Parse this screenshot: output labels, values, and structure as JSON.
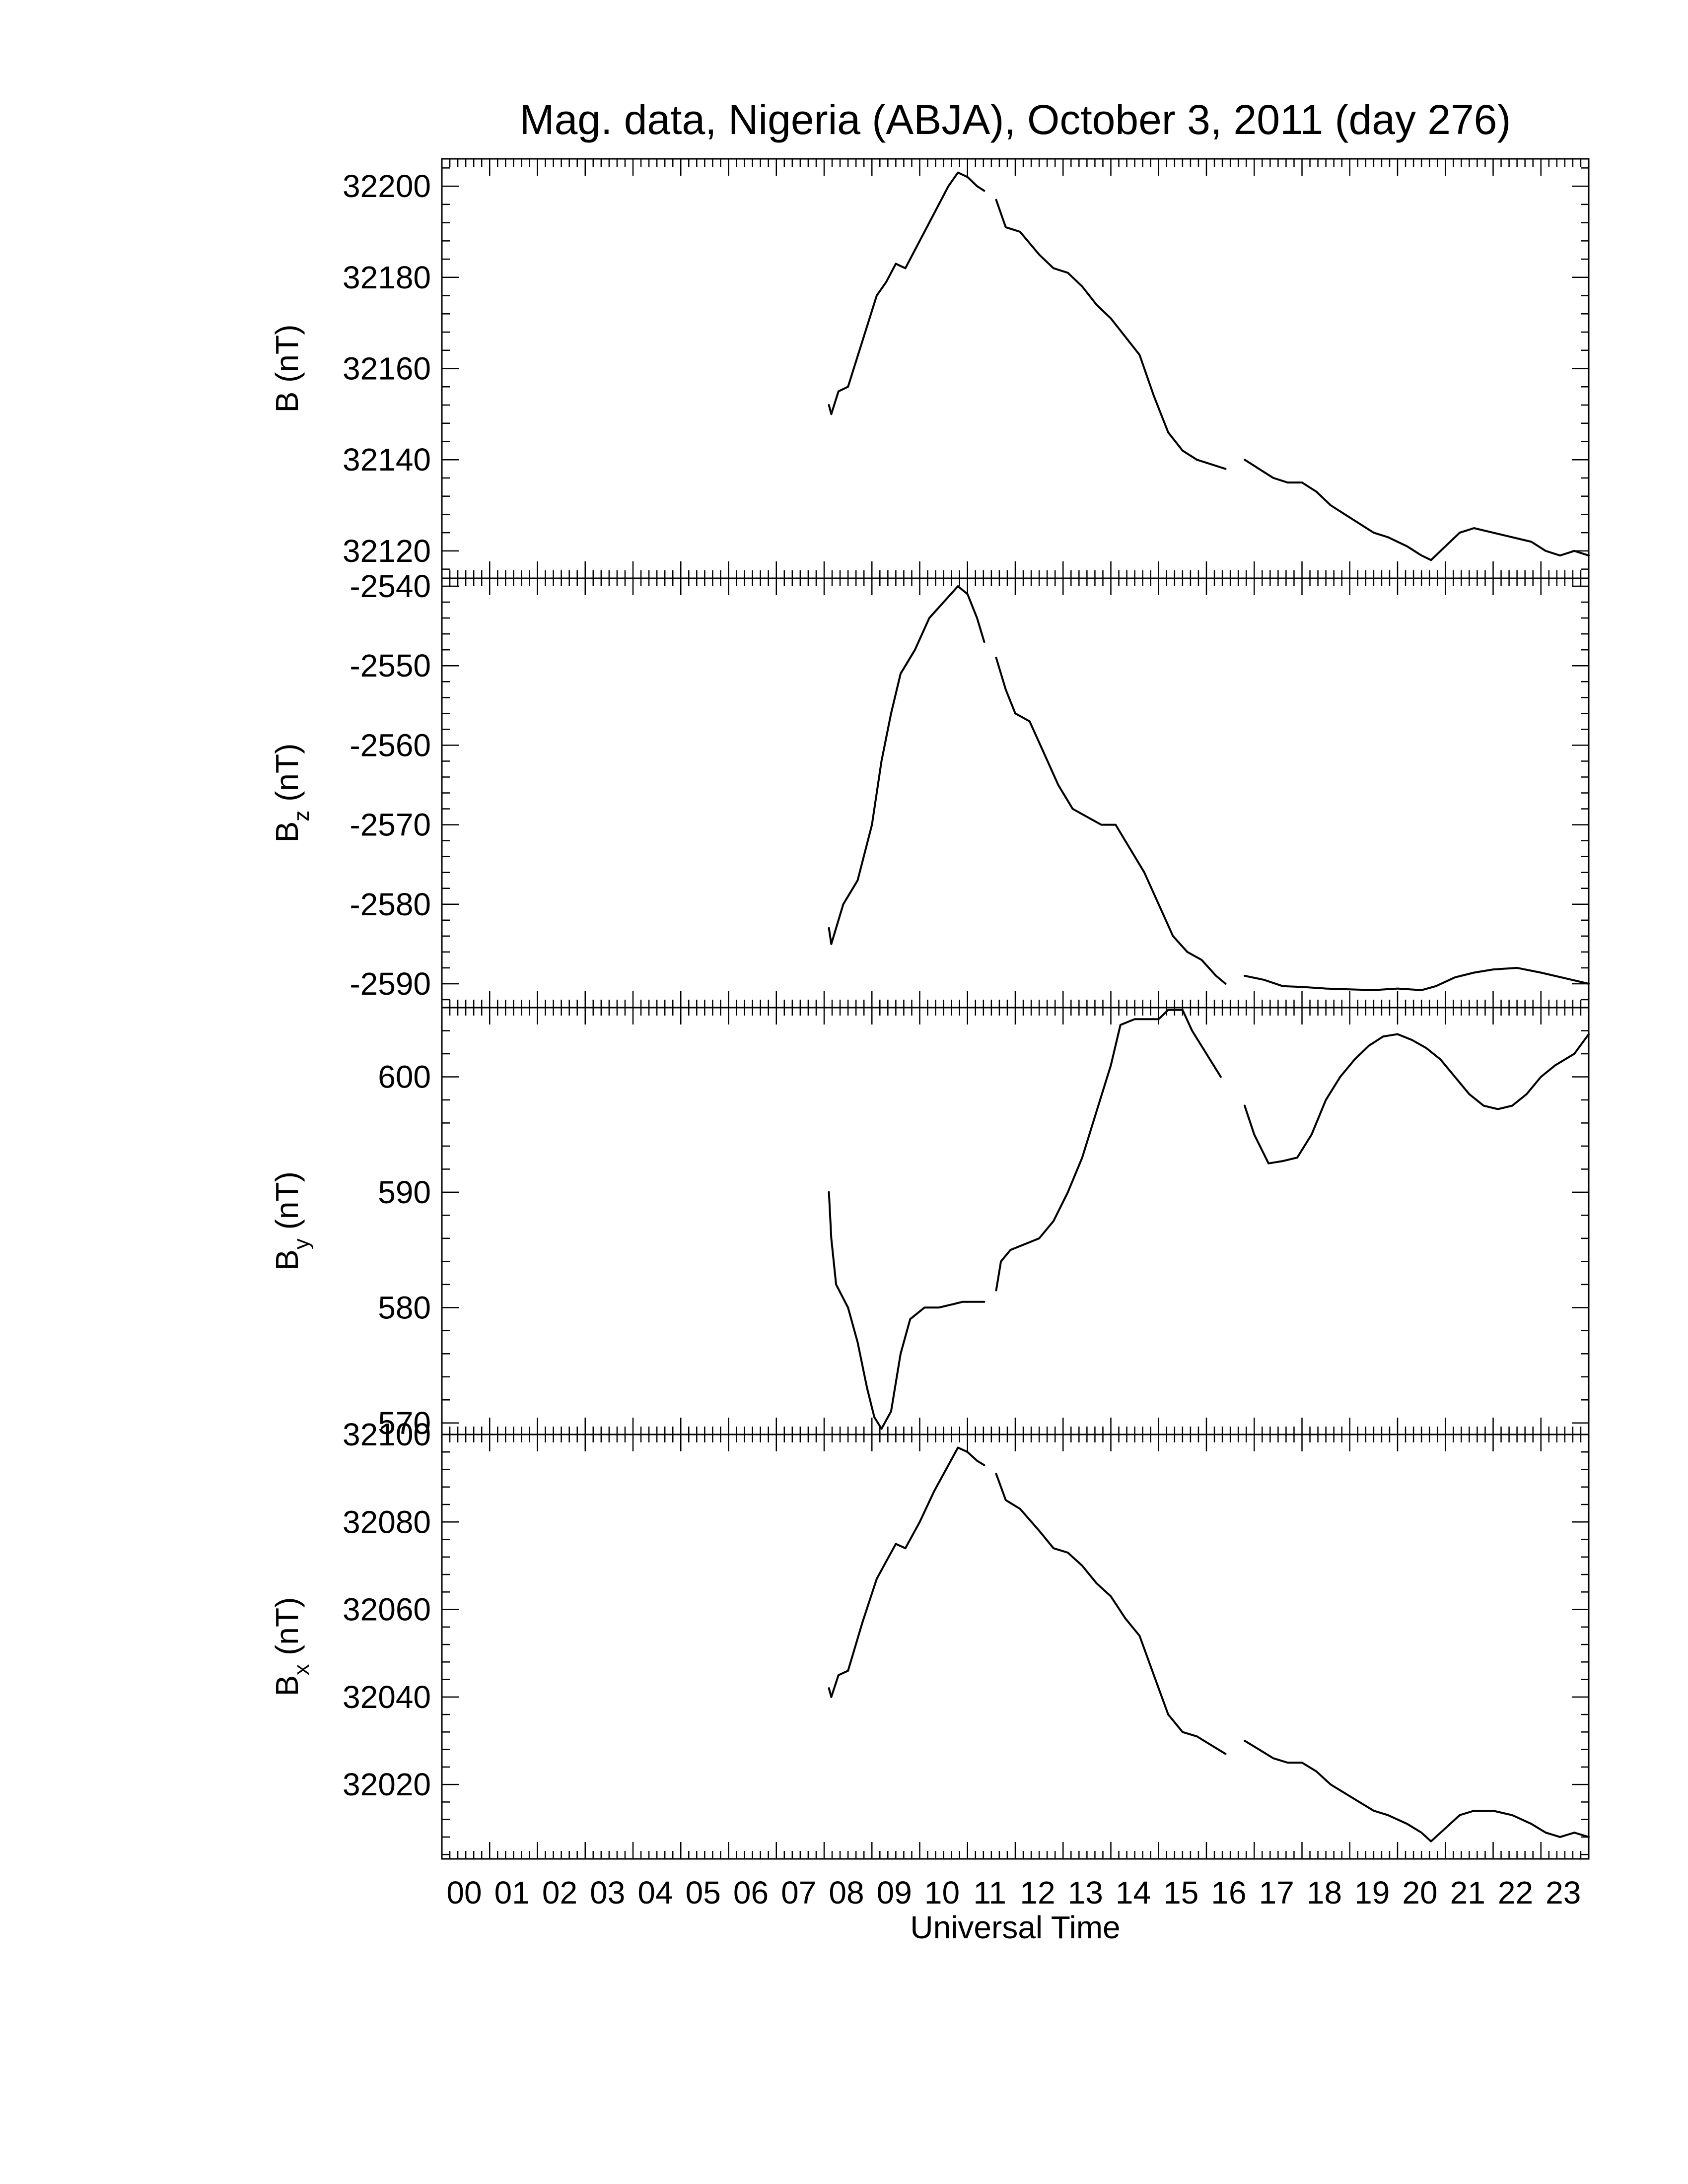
{
  "chart_data": {
    "type": "line",
    "title": "Mag. data, Nigeria (ABJA), October 3, 2011 (day 276)",
    "xlabel": "Universal Time",
    "xlim": [
      0,
      24
    ],
    "x_ticks": [
      0,
      1,
      2,
      3,
      4,
      5,
      6,
      7,
      8,
      9,
      10,
      11,
      12,
      13,
      14,
      15,
      16,
      17,
      18,
      19,
      20,
      21,
      22,
      23
    ],
    "x_tick_labels": [
      "00",
      "01",
      "02",
      "03",
      "04",
      "05",
      "06",
      "07",
      "08",
      "09",
      "10",
      "11",
      "12",
      "13",
      "14",
      "15",
      "16",
      "17",
      "18",
      "19",
      "20",
      "21",
      "22",
      "23"
    ],
    "panels": [
      {
        "id": "B",
        "ylabel_main": "B",
        "ylabel_sub": "",
        "ylabel_unit": "(nT)",
        "ylim": [
          32114,
          32206
        ],
        "y_ticks": [
          32120,
          32140,
          32160,
          32180,
          32200
        ],
        "segments": [
          [
            [
              8.1,
              32152
            ],
            [
              8.15,
              32150
            ],
            [
              8.3,
              32155
            ],
            [
              8.5,
              32156
            ],
            [
              8.8,
              32166
            ],
            [
              9.1,
              32176
            ],
            [
              9.3,
              32179
            ],
            [
              9.5,
              32183
            ],
            [
              9.7,
              32182
            ],
            [
              10.0,
              32188
            ],
            [
              10.3,
              32194
            ],
            [
              10.6,
              32200
            ],
            [
              10.8,
              32203
            ],
            [
              11.0,
              32202
            ],
            [
              11.2,
              32200
            ],
            [
              11.35,
              32199
            ]
          ],
          [
            [
              11.6,
              32197
            ],
            [
              11.8,
              32191
            ],
            [
              12.1,
              32190
            ],
            [
              12.5,
              32185
            ],
            [
              12.8,
              32182
            ],
            [
              13.1,
              32181
            ],
            [
              13.4,
              32178
            ],
            [
              13.7,
              32174
            ],
            [
              14.0,
              32171
            ],
            [
              14.3,
              32167
            ],
            [
              14.6,
              32163
            ],
            [
              14.9,
              32154
            ],
            [
              15.2,
              32146
            ],
            [
              15.5,
              32142
            ],
            [
              15.8,
              32140
            ],
            [
              16.1,
              32139
            ],
            [
              16.4,
              32138
            ]
          ],
          [
            [
              16.8,
              32140
            ],
            [
              17.1,
              32138
            ],
            [
              17.4,
              32136
            ],
            [
              17.7,
              32135
            ],
            [
              18.0,
              32135
            ],
            [
              18.3,
              32133
            ],
            [
              18.6,
              32130
            ],
            [
              18.9,
              32128
            ],
            [
              19.2,
              32126
            ],
            [
              19.5,
              32124
            ],
            [
              19.8,
              32123
            ],
            [
              20.2,
              32121
            ],
            [
              20.5,
              32119
            ],
            [
              20.7,
              32118
            ],
            [
              21.0,
              32121
            ],
            [
              21.3,
              32124
            ],
            [
              21.6,
              32125
            ],
            [
              22.0,
              32124
            ],
            [
              22.4,
              32123
            ],
            [
              22.8,
              32122
            ],
            [
              23.1,
              32120
            ],
            [
              23.4,
              32119
            ],
            [
              23.7,
              32120
            ],
            [
              24.0,
              32119
            ]
          ]
        ]
      },
      {
        "id": "Bz",
        "ylabel_main": "B",
        "ylabel_sub": "z",
        "ylabel_unit": "(nT)",
        "ylim": [
          -2593,
          -2539
        ],
        "y_ticks": [
          -2540,
          -2550,
          -2560,
          -2570,
          -2580,
          -2590
        ],
        "segments": [
          [
            [
              8.1,
              -2583
            ],
            [
              8.15,
              -2585
            ],
            [
              8.4,
              -2580
            ],
            [
              8.7,
              -2577
            ],
            [
              9.0,
              -2570
            ],
            [
              9.2,
              -2562
            ],
            [
              9.4,
              -2556
            ],
            [
              9.6,
              -2551
            ],
            [
              9.9,
              -2548
            ],
            [
              10.2,
              -2544
            ],
            [
              10.5,
              -2542
            ],
            [
              10.8,
              -2540
            ],
            [
              11.0,
              -2541
            ],
            [
              11.2,
              -2544
            ],
            [
              11.35,
              -2547
            ]
          ],
          [
            [
              11.6,
              -2549
            ],
            [
              11.8,
              -2553
            ],
            [
              12.0,
              -2556
            ],
            [
              12.3,
              -2557
            ],
            [
              12.6,
              -2561
            ],
            [
              12.9,
              -2565
            ],
            [
              13.2,
              -2568
            ],
            [
              13.5,
              -2569
            ],
            [
              13.8,
              -2570
            ],
            [
              14.1,
              -2570
            ],
            [
              14.4,
              -2573
            ],
            [
              14.7,
              -2576
            ],
            [
              15.0,
              -2580
            ],
            [
              15.3,
              -2584
            ],
            [
              15.6,
              -2586
            ],
            [
              15.9,
              -2587
            ],
            [
              16.2,
              -2589
            ],
            [
              16.4,
              -2590
            ]
          ],
          [
            [
              16.8,
              -2589
            ],
            [
              17.2,
              -2589.5
            ],
            [
              17.6,
              -2590.3
            ],
            [
              18.0,
              -2590.4
            ],
            [
              18.5,
              -2590.6
            ],
            [
              19.0,
              -2590.7
            ],
            [
              19.5,
              -2590.8
            ],
            [
              20.0,
              -2590.6
            ],
            [
              20.5,
              -2590.8
            ],
            [
              20.8,
              -2590.3
            ],
            [
              21.2,
              -2589.2
            ],
            [
              21.6,
              -2588.6
            ],
            [
              22.0,
              -2588.2
            ],
            [
              22.5,
              -2588.0
            ],
            [
              23.0,
              -2588.6
            ],
            [
              23.5,
              -2589.3
            ],
            [
              24.0,
              -2590
            ]
          ]
        ]
      },
      {
        "id": "By",
        "ylabel_main": "B",
        "ylabel_sub": "y",
        "ylabel_unit": "(nT)",
        "ylim": [
          569,
          606
        ],
        "y_ticks": [
          570,
          580,
          590,
          600
        ],
        "segments": [
          [
            [
              8.1,
              590
            ],
            [
              8.15,
              586
            ],
            [
              8.25,
              582
            ],
            [
              8.5,
              580
            ],
            [
              8.7,
              577
            ],
            [
              8.9,
              573
            ],
            [
              9.05,
              570.5
            ],
            [
              9.2,
              569.5
            ],
            [
              9.4,
              571
            ],
            [
              9.6,
              576
            ],
            [
              9.8,
              579
            ],
            [
              10.1,
              580
            ],
            [
              10.4,
              580
            ],
            [
              10.7,
              580.3
            ],
            [
              10.9,
              580.5
            ],
            [
              11.1,
              580.5
            ],
            [
              11.35,
              580.5
            ]
          ],
          [
            [
              11.6,
              581.5
            ],
            [
              11.7,
              584
            ],
            [
              11.9,
              585
            ],
            [
              12.2,
              585.5
            ],
            [
              12.5,
              586
            ],
            [
              12.8,
              587.5
            ],
            [
              13.1,
              590
            ],
            [
              13.4,
              593
            ],
            [
              13.7,
              597
            ],
            [
              14.0,
              601
            ],
            [
              14.2,
              604.5
            ],
            [
              14.5,
              605
            ],
            [
              14.8,
              605
            ],
            [
              15.0,
              605
            ],
            [
              15.2,
              605.8
            ],
            [
              15.5,
              605.8
            ],
            [
              15.7,
              604
            ],
            [
              16.0,
              602
            ],
            [
              16.3,
              600
            ]
          ],
          [
            [
              16.8,
              597.5
            ],
            [
              17.0,
              595
            ],
            [
              17.3,
              592.5
            ],
            [
              17.6,
              592.7
            ],
            [
              17.9,
              593
            ],
            [
              18.2,
              595
            ],
            [
              18.5,
              598
            ],
            [
              18.8,
              600
            ],
            [
              19.1,
              601.5
            ],
            [
              19.4,
              602.7
            ],
            [
              19.7,
              603.5
            ],
            [
              20.0,
              603.7
            ],
            [
              20.3,
              603.2
            ],
            [
              20.6,
              602.5
            ],
            [
              20.9,
              601.5
            ],
            [
              21.2,
              600
            ],
            [
              21.5,
              598.5
            ],
            [
              21.8,
              597.5
            ],
            [
              22.1,
              597.2
            ],
            [
              22.4,
              597.5
            ],
            [
              22.7,
              598.5
            ],
            [
              23.0,
              600
            ],
            [
              23.3,
              601
            ],
            [
              23.7,
              602
            ],
            [
              24.0,
              603.7
            ]
          ]
        ]
      },
      {
        "id": "Bx",
        "ylabel_main": "B",
        "ylabel_sub": "x",
        "ylabel_unit": "(nT)",
        "ylim": [
          32003,
          32100
        ],
        "y_ticks": [
          32020,
          32040,
          32060,
          32080,
          32100
        ],
        "segments": [
          [
            [
              8.1,
              32042
            ],
            [
              8.15,
              32040
            ],
            [
              8.3,
              32045
            ],
            [
              8.5,
              32046
            ],
            [
              8.8,
              32057
            ],
            [
              9.1,
              32067
            ],
            [
              9.3,
              32071
            ],
            [
              9.5,
              32075
            ],
            [
              9.7,
              32074
            ],
            [
              10.0,
              32080
            ],
            [
              10.3,
              32087
            ],
            [
              10.6,
              32093
            ],
            [
              10.8,
              32097
            ],
            [
              11.0,
              32096
            ],
            [
              11.2,
              32094
            ],
            [
              11.35,
              32093
            ]
          ],
          [
            [
              11.6,
              32091
            ],
            [
              11.8,
              32085
            ],
            [
              12.1,
              32083
            ],
            [
              12.5,
              32078
            ],
            [
              12.8,
              32074
            ],
            [
              13.1,
              32073
            ],
            [
              13.4,
              32070
            ],
            [
              13.7,
              32066
            ],
            [
              14.0,
              32063
            ],
            [
              14.3,
              32058
            ],
            [
              14.6,
              32054
            ],
            [
              14.9,
              32045
            ],
            [
              15.2,
              32036
            ],
            [
              15.5,
              32032
            ],
            [
              15.8,
              32031
            ],
            [
              16.1,
              32029
            ],
            [
              16.4,
              32027
            ]
          ],
          [
            [
              16.8,
              32030
            ],
            [
              17.1,
              32028
            ],
            [
              17.4,
              32026
            ],
            [
              17.7,
              32025
            ],
            [
              18.0,
              32025
            ],
            [
              18.3,
              32023
            ],
            [
              18.6,
              32020
            ],
            [
              18.9,
              32018
            ],
            [
              19.2,
              32016
            ],
            [
              19.5,
              32014
            ],
            [
              19.8,
              32013
            ],
            [
              20.2,
              32011
            ],
            [
              20.5,
              32009
            ],
            [
              20.7,
              32007
            ],
            [
              21.0,
              32010
            ],
            [
              21.3,
              32013
            ],
            [
              21.6,
              32014
            ],
            [
              22.0,
              32014
            ],
            [
              22.4,
              32013
            ],
            [
              22.8,
              32011
            ],
            [
              23.1,
              32009
            ],
            [
              23.4,
              32008
            ],
            [
              23.7,
              32009
            ],
            [
              24.0,
              32008
            ]
          ]
        ]
      }
    ]
  }
}
